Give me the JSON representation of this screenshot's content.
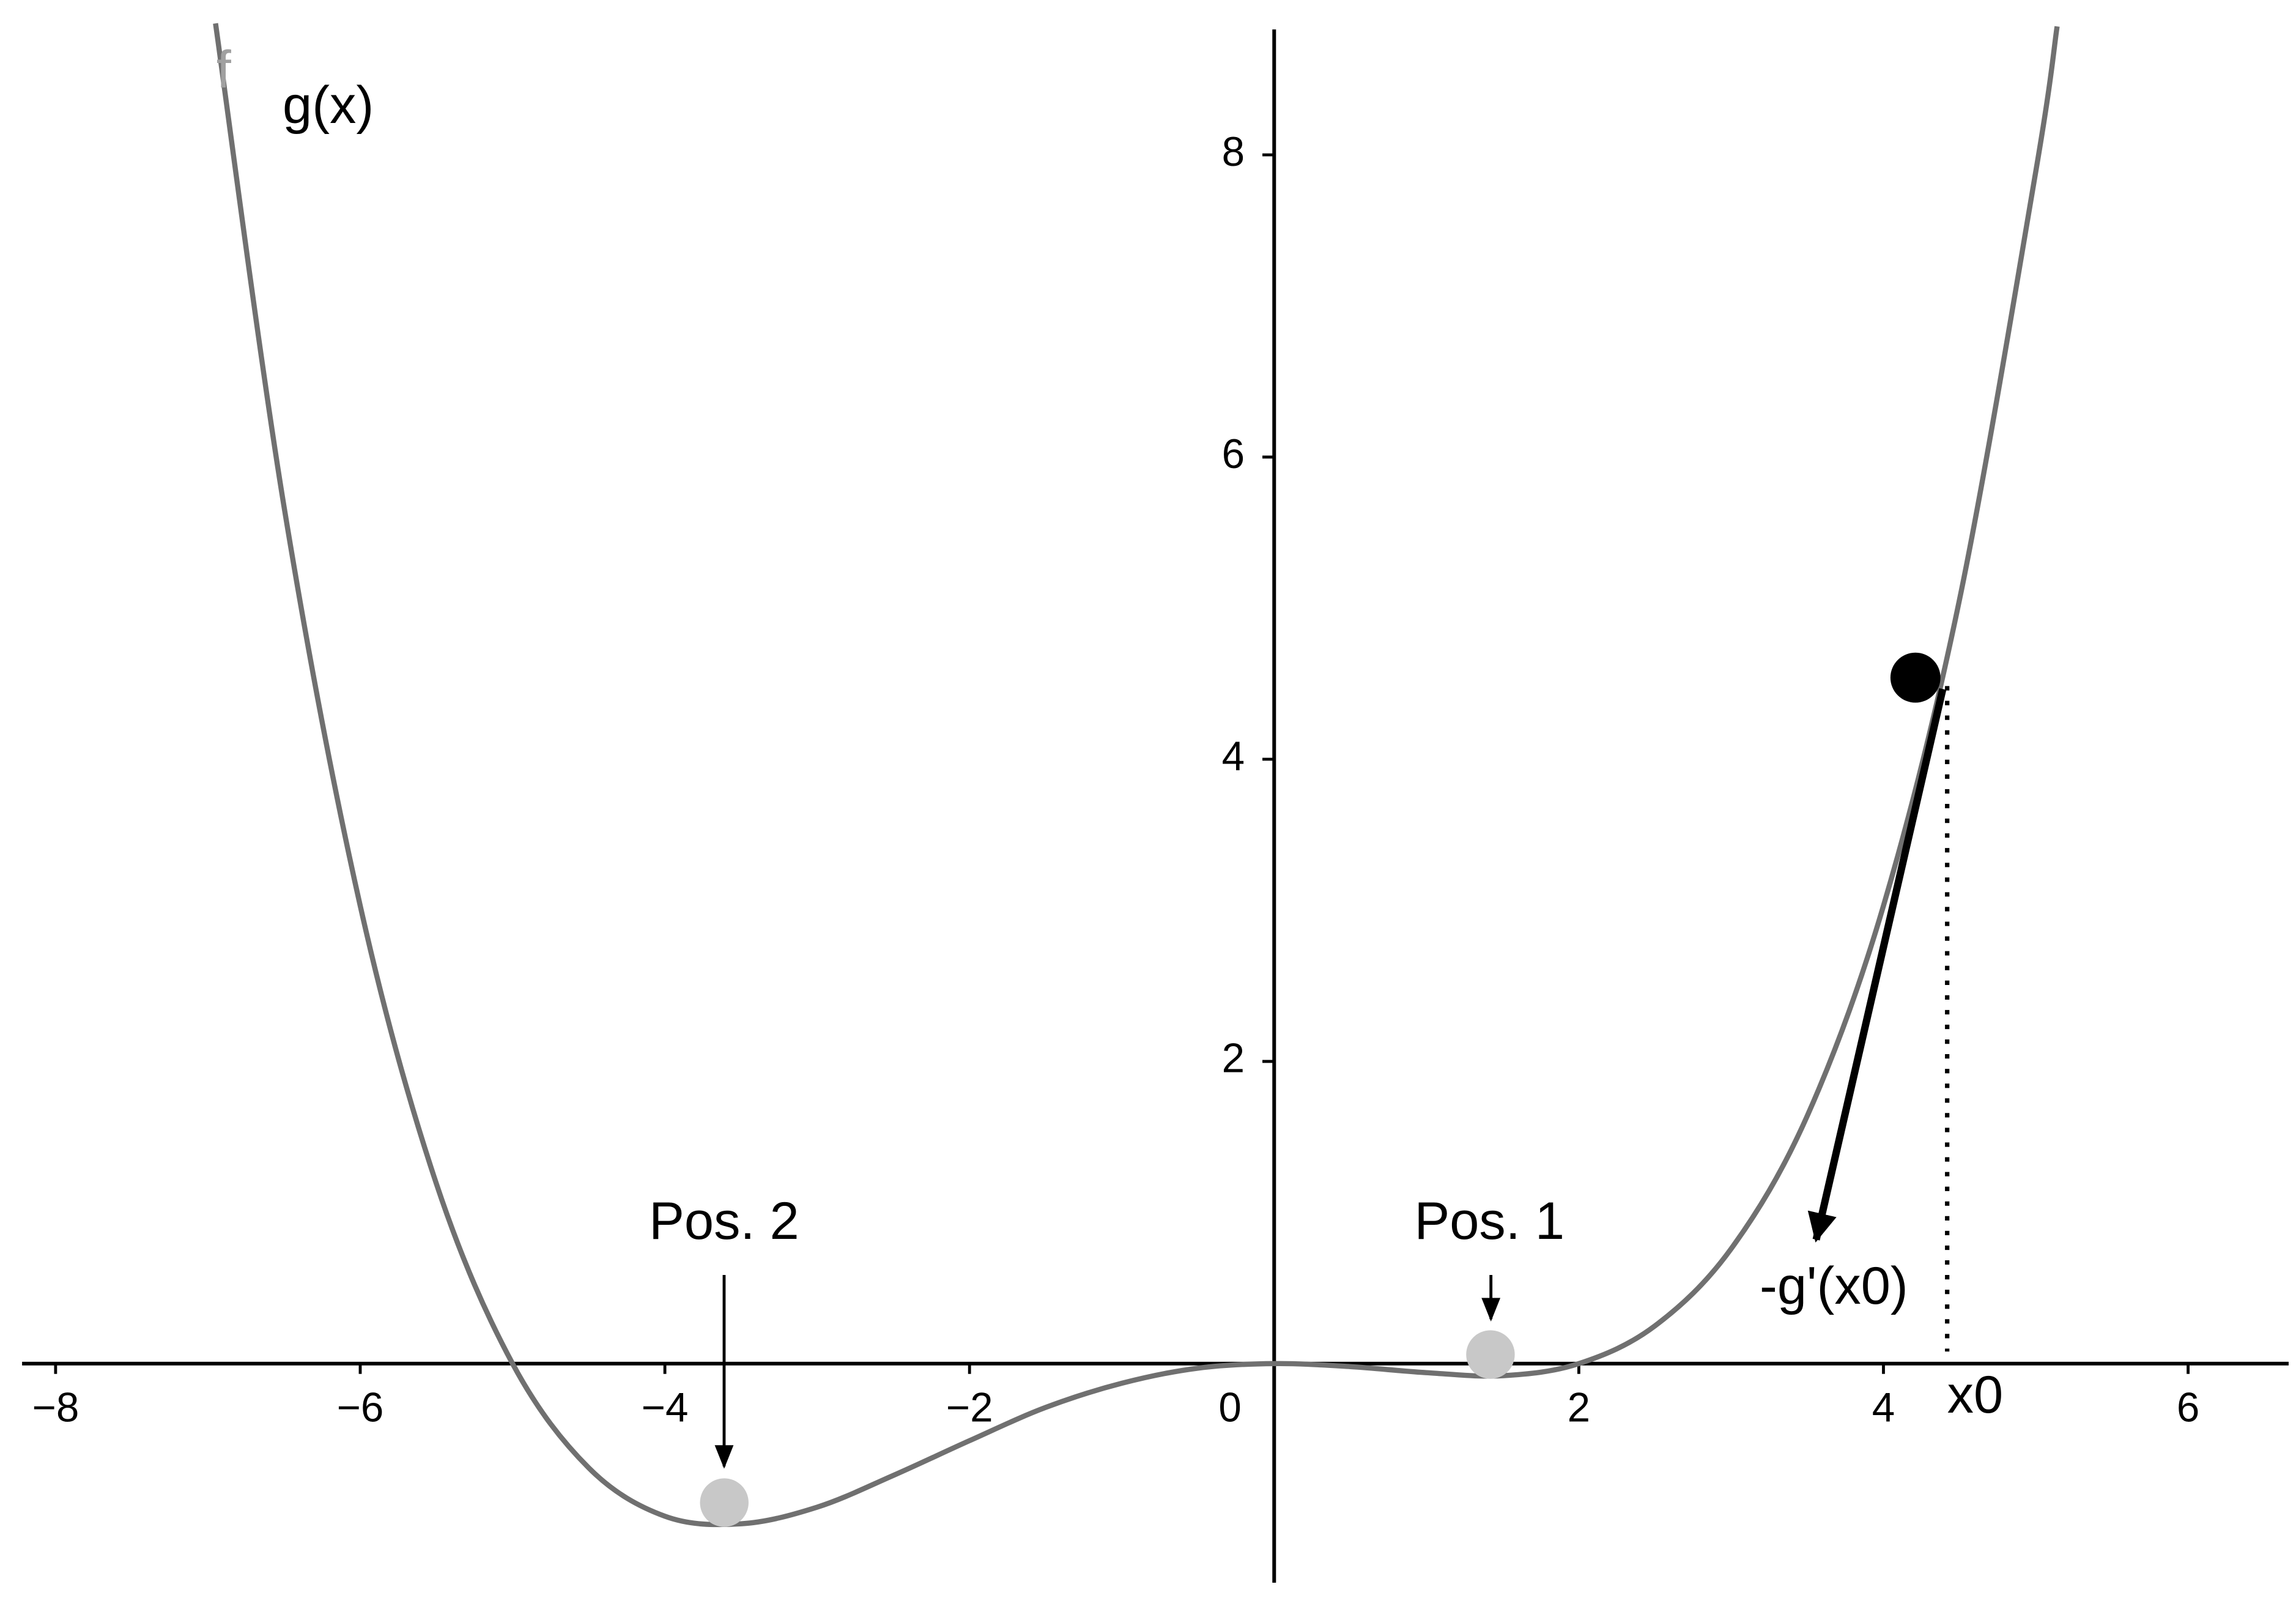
{
  "chart_data": {
    "type": "line",
    "x": [
      -6.95,
      -6.5,
      -6,
      -5.5,
      -5,
      -4.5,
      -4,
      -3.5,
      -3,
      -2.5,
      -2,
      -1.5,
      -1,
      -0.5,
      0,
      0.5,
      1,
      1.5,
      2,
      2.5,
      3,
      3.5,
      4,
      4.5,
      5,
      5.14
    ],
    "series": [
      {
        "name": "g(x)",
        "color": "#707070",
        "values": [
          8.87,
          5.67,
          3.03,
          1.19,
          0,
          -0.69,
          -1.01,
          -1.06,
          -0.95,
          -0.74,
          -0.51,
          -0.29,
          -0.13,
          -0.03,
          0,
          -0.02,
          -0.06,
          -0.08,
          0,
          0.25,
          0.76,
          1.64,
          3.03,
          5.06,
          7.89,
          8.85
        ]
      }
    ],
    "points": {
      "x": [
        4.21,
        1.42,
        -3.61
      ],
      "y": [
        4.54,
        0.06,
        -0.92
      ],
      "colors": [
        "#000000",
        "#c8c8c8",
        "#c8c8c8"
      ]
    },
    "annotations": [
      "Pos. 1",
      "Pos. 2",
      "-g'(x0)",
      "x0",
      "f"
    ],
    "xlim": [
      -8.22,
      6.66
    ],
    "ylim": [
      -1.45,
      8.83
    ],
    "xticks": [
      {
        "value": -8,
        "label": "−8"
      },
      {
        "value": -6,
        "label": "−6"
      },
      {
        "value": -4,
        "label": "−4"
      },
      {
        "value": -2,
        "label": "−2"
      },
      0,
      2,
      4,
      6
    ],
    "yticks": [
      2,
      4,
      6,
      8
    ]
  }
}
